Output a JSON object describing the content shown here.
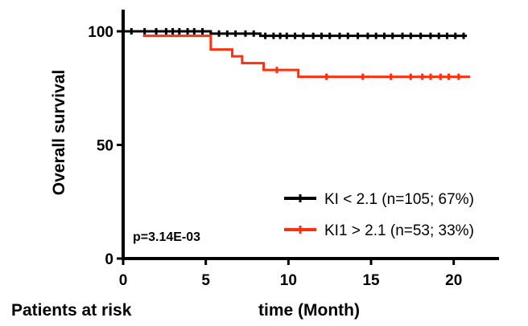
{
  "chart_data": {
    "type": "line",
    "subtype": "kaplan-meier",
    "title": "",
    "xlabel": "time (Month)",
    "ylabel": "Overall survival",
    "xlim": [
      0,
      23
    ],
    "ylim": [
      0,
      105
    ],
    "xticks": [
      0,
      5,
      10,
      15,
      20
    ],
    "yticks": [
      0,
      50,
      100
    ],
    "annotation": "p=3.14E-03",
    "footer_label": "Patients at risk",
    "legend_position": "bottom-right",
    "grid": false,
    "series": [
      {
        "name": "KI < 2.1 (n=105; 67%)",
        "color": "#000000",
        "steps": [
          [
            0,
            100
          ],
          [
            5.3,
            100
          ],
          [
            5.3,
            99
          ],
          [
            8.3,
            99
          ],
          [
            8.3,
            98
          ],
          [
            20.8,
            98
          ]
        ],
        "censor_x": [
          0.5,
          1.3,
          2.0,
          2.6,
          3.0,
          3.4,
          3.9,
          4.3,
          4.8,
          5.8,
          6.3,
          6.8,
          7.4,
          7.9,
          8.6,
          9.1,
          9.5,
          9.9,
          10.4,
          10.9,
          11.5,
          12.0,
          12.5,
          13.1,
          13.6,
          14.2,
          14.8,
          15.3,
          15.8,
          16.3,
          16.9,
          17.4,
          18.0,
          18.6,
          19.1,
          19.6,
          20.1,
          20.6
        ]
      },
      {
        "name": "KI1 > 2.1 (n=53; 33%)",
        "color": "#ff3010",
        "steps": [
          [
            1.2,
            98
          ],
          [
            5.3,
            98
          ],
          [
            5.3,
            92
          ],
          [
            6.6,
            92
          ],
          [
            6.6,
            89
          ],
          [
            7.2,
            89
          ],
          [
            7.2,
            86
          ],
          [
            8.5,
            86
          ],
          [
            8.5,
            83
          ],
          [
            10.6,
            83
          ],
          [
            10.6,
            80
          ],
          [
            21.0,
            80
          ]
        ],
        "censor_x": [
          9.3,
          12.3,
          14.5,
          16.2,
          17.4,
          18.1,
          18.6,
          19.2,
          19.7,
          20.3
        ]
      }
    ]
  }
}
